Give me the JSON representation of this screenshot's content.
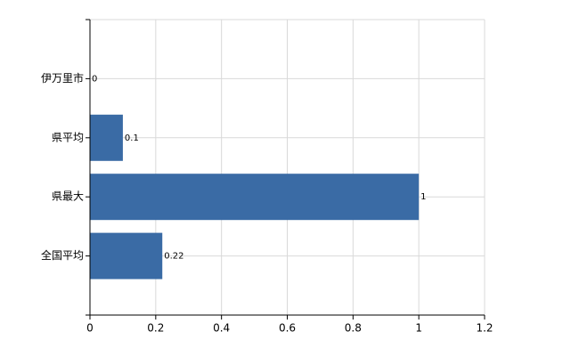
{
  "chart_data": {
    "type": "bar",
    "orientation": "horizontal",
    "categories": [
      "伊万里市",
      "県平均",
      "県最大",
      "全国平均"
    ],
    "values": [
      0,
      0.1,
      1,
      0.22
    ],
    "color": "#3a6ba5",
    "xlim": [
      0,
      1.2
    ],
    "xticks": [
      0,
      0.2,
      0.4,
      0.6,
      0.8,
      1,
      1.2
    ],
    "grid": true
  }
}
